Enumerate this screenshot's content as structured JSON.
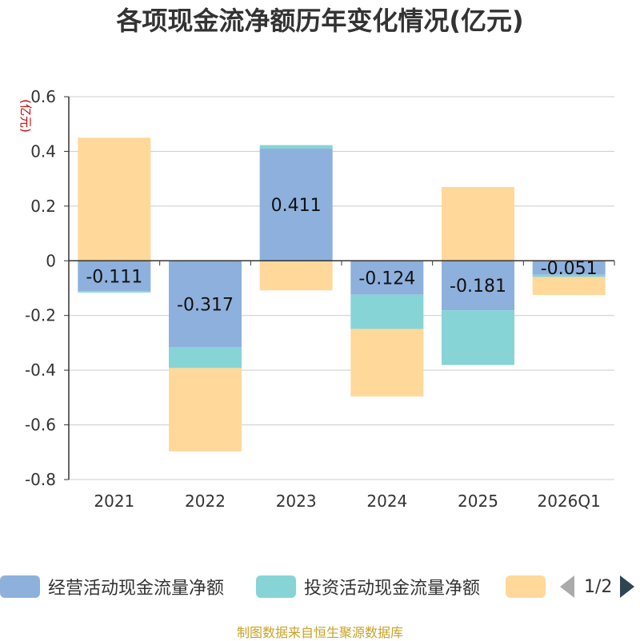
{
  "title": "各项现金流净额历年变化情况(亿元)",
  "source": "制图数据来自恒生聚源数据库",
  "pager": {
    "text": "1/2"
  },
  "colors": {
    "operating": "#8eb0dc",
    "investing": "#86d4d6",
    "financing": "#ffd89a",
    "axis": "#333333",
    "grid": "#cccccc",
    "unit": "#cc0000"
  },
  "chart_data": {
    "type": "bar",
    "stacked": true,
    "ylabel": "(亿元)",
    "ylim": [
      -0.8,
      0.6
    ],
    "yticks": [
      0.6,
      0.4,
      0.2,
      0,
      -0.2,
      -0.4,
      -0.6,
      -0.8
    ],
    "ytick_labels": [
      "0.6",
      "0.4",
      "0.2",
      "0",
      "-0.2",
      "-0.4",
      "-0.6",
      "-0.8"
    ],
    "grid": true,
    "legend_position": "bottom",
    "categories": [
      "2021",
      "2022",
      "2023",
      "2024",
      "2025",
      "2026Q1"
    ],
    "series": [
      {
        "name": "经营活动现金流量净额",
        "key": "operating",
        "values": [
          -0.111,
          -0.317,
          0.411,
          -0.124,
          -0.181,
          -0.051
        ],
        "labels": [
          "-0.111",
          "-0.317",
          "0.411",
          "-0.124",
          "-0.181",
          "-0.051"
        ]
      },
      {
        "name": "投资活动现金流量净额",
        "key": "investing",
        "values": [
          -0.005,
          -0.075,
          0.012,
          -0.125,
          -0.2,
          -0.008
        ]
      },
      {
        "name": "",
        "key": "financing",
        "values": [
          0.45,
          -0.305,
          -0.108,
          -0.247,
          0.27,
          -0.066
        ]
      }
    ]
  }
}
